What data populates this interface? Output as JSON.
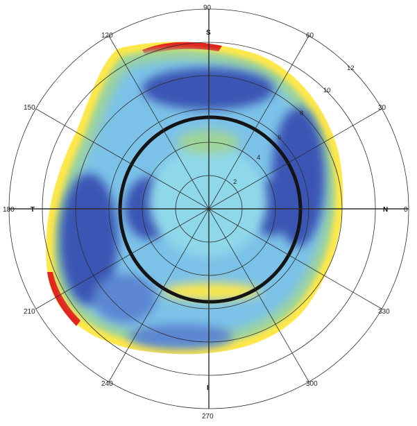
{
  "diagram": {
    "type": "polar-color-map",
    "angle_labels": [
      "0",
      "30",
      "60",
      "90",
      "120",
      "150",
      "180",
      "210",
      "240",
      "270",
      "300",
      "330"
    ],
    "direction_labels": {
      "top": "S",
      "bottom": "I",
      "left": "T",
      "right": "N"
    },
    "ring_labels": [
      "2",
      "4",
      "6",
      "8",
      "10",
      "12"
    ],
    "colors": {
      "dark_blue": "#3a55b4",
      "mid_blue": "#5b86d2",
      "light_blue": "#7cc2e8",
      "cyan": "#8fd8ea",
      "green": "#9fd49a",
      "yellow": "#ffe84a",
      "orange": "#f5a623",
      "red": "#e2241c",
      "ring_black": "#141414",
      "grid": "#2b2b2b"
    }
  }
}
